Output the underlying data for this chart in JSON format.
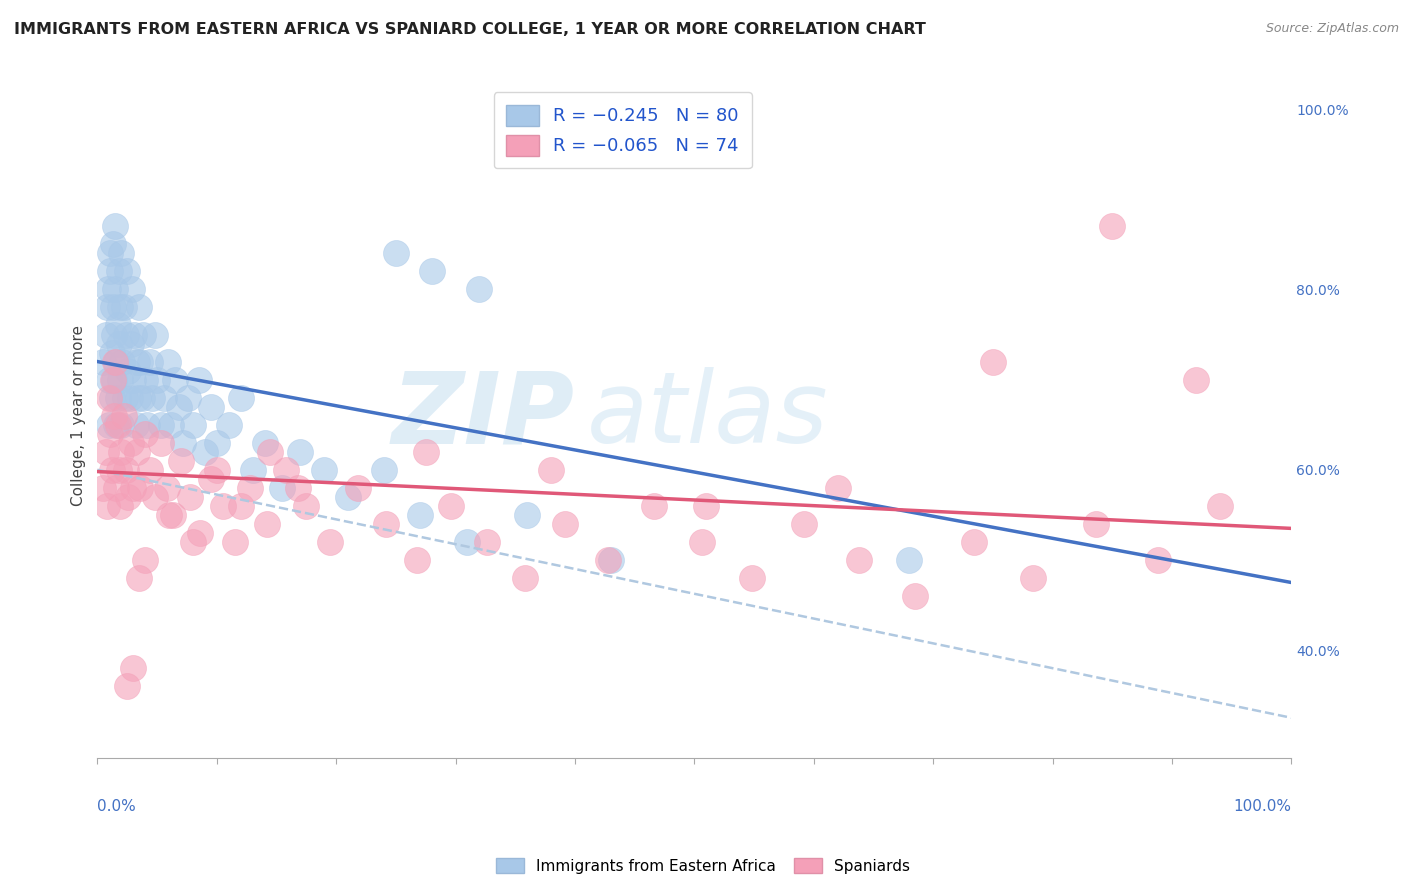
{
  "title": "IMMIGRANTS FROM EASTERN AFRICA VS SPANIARD COLLEGE, 1 YEAR OR MORE CORRELATION CHART",
  "source": "Source: ZipAtlas.com",
  "ylabel": "College, 1 year or more",
  "legend_r1": "-0.245",
  "legend_n1": "80",
  "legend_r2": "-0.065",
  "legend_n2": "74",
  "color_blue": "#a8c8e8",
  "color_pink": "#f4a0b8",
  "color_blue_line": "#4472c4",
  "color_pink_line": "#e05878",
  "color_dashed": "#b0c8e0",
  "watermark_zip": "ZIP",
  "watermark_atlas": "atlas",
  "xlim": [
    0.0,
    1.0
  ],
  "ylim": [
    0.28,
    1.04
  ],
  "right_yticks": [
    0.4,
    0.6,
    0.8,
    1.0
  ],
  "right_yticklabels": [
    "40.0%",
    "60.0%",
    "80.0%",
    "100.0%"
  ],
  "trendline_blue_x0": 0.0,
  "trendline_blue_y0": 0.72,
  "trendline_blue_x1": 1.0,
  "trendline_blue_y1": 0.475,
  "trendline_pink_x0": 0.0,
  "trendline_pink_y0": 0.598,
  "trendline_pink_x1": 1.0,
  "trendline_pink_y1": 0.535,
  "trendline_dash_x0": 0.0,
  "trendline_dash_y0": 0.6,
  "trendline_dash_x1": 1.0,
  "trendline_dash_y1": 0.325,
  "blue_x": [
    0.005,
    0.007,
    0.008,
    0.009,
    0.01,
    0.01,
    0.011,
    0.011,
    0.012,
    0.012,
    0.013,
    0.013,
    0.014,
    0.014,
    0.015,
    0.015,
    0.016,
    0.016,
    0.017,
    0.017,
    0.018,
    0.018,
    0.019,
    0.019,
    0.02,
    0.02,
    0.021,
    0.022,
    0.023,
    0.024,
    0.025,
    0.026,
    0.027,
    0.028,
    0.029,
    0.03,
    0.031,
    0.032,
    0.033,
    0.034,
    0.035,
    0.036,
    0.037,
    0.038,
    0.04,
    0.042,
    0.044,
    0.046,
    0.048,
    0.05,
    0.053,
    0.056,
    0.059,
    0.062,
    0.065,
    0.068,
    0.072,
    0.076,
    0.08,
    0.085,
    0.09,
    0.095,
    0.1,
    0.11,
    0.12,
    0.13,
    0.14,
    0.155,
    0.17,
    0.19,
    0.21,
    0.24,
    0.27,
    0.31,
    0.36,
    0.28,
    0.32,
    0.25,
    0.43,
    0.68
  ],
  "blue_y": [
    0.72,
    0.75,
    0.78,
    0.8,
    0.65,
    0.7,
    0.82,
    0.84,
    0.68,
    0.73,
    0.78,
    0.85,
    0.7,
    0.75,
    0.8,
    0.87,
    0.65,
    0.72,
    0.68,
    0.76,
    0.82,
    0.74,
    0.7,
    0.78,
    0.84,
    0.65,
    0.72,
    0.78,
    0.68,
    0.75,
    0.82,
    0.71,
    0.68,
    0.74,
    0.8,
    0.7,
    0.75,
    0.65,
    0.72,
    0.68,
    0.78,
    0.72,
    0.68,
    0.75,
    0.7,
    0.65,
    0.72,
    0.68,
    0.75,
    0.7,
    0.65,
    0.68,
    0.72,
    0.65,
    0.7,
    0.67,
    0.63,
    0.68,
    0.65,
    0.7,
    0.62,
    0.67,
    0.63,
    0.65,
    0.68,
    0.6,
    0.63,
    0.58,
    0.62,
    0.6,
    0.57,
    0.6,
    0.55,
    0.52,
    0.55,
    0.82,
    0.8,
    0.84,
    0.5,
    0.5
  ],
  "pink_x": [
    0.005,
    0.007,
    0.008,
    0.01,
    0.011,
    0.012,
    0.013,
    0.014,
    0.015,
    0.016,
    0.017,
    0.018,
    0.019,
    0.02,
    0.022,
    0.024,
    0.026,
    0.028,
    0.03,
    0.033,
    0.036,
    0.04,
    0.044,
    0.048,
    0.053,
    0.058,
    0.063,
    0.07,
    0.078,
    0.086,
    0.095,
    0.105,
    0.115,
    0.128,
    0.142,
    0.158,
    0.175,
    0.195,
    0.218,
    0.242,
    0.268,
    0.296,
    0.326,
    0.358,
    0.392,
    0.428,
    0.466,
    0.506,
    0.548,
    0.592,
    0.638,
    0.685,
    0.734,
    0.784,
    0.836,
    0.888,
    0.94,
    0.06,
    0.08,
    0.1,
    0.12,
    0.145,
    0.168,
    0.275,
    0.38,
    0.51,
    0.62,
    0.75,
    0.85,
    0.92,
    0.04,
    0.035,
    0.03,
    0.025
  ],
  "pink_y": [
    0.58,
    0.62,
    0.56,
    0.68,
    0.64,
    0.6,
    0.7,
    0.66,
    0.72,
    0.58,
    0.65,
    0.6,
    0.56,
    0.62,
    0.66,
    0.6,
    0.57,
    0.63,
    0.58,
    0.62,
    0.58,
    0.64,
    0.6,
    0.57,
    0.63,
    0.58,
    0.55,
    0.61,
    0.57,
    0.53,
    0.59,
    0.56,
    0.52,
    0.58,
    0.54,
    0.6,
    0.56,
    0.52,
    0.58,
    0.54,
    0.5,
    0.56,
    0.52,
    0.48,
    0.54,
    0.5,
    0.56,
    0.52,
    0.48,
    0.54,
    0.5,
    0.46,
    0.52,
    0.48,
    0.54,
    0.5,
    0.56,
    0.55,
    0.52,
    0.6,
    0.56,
    0.62,
    0.58,
    0.62,
    0.6,
    0.56,
    0.58,
    0.72,
    0.87,
    0.7,
    0.5,
    0.48,
    0.38,
    0.36
  ]
}
